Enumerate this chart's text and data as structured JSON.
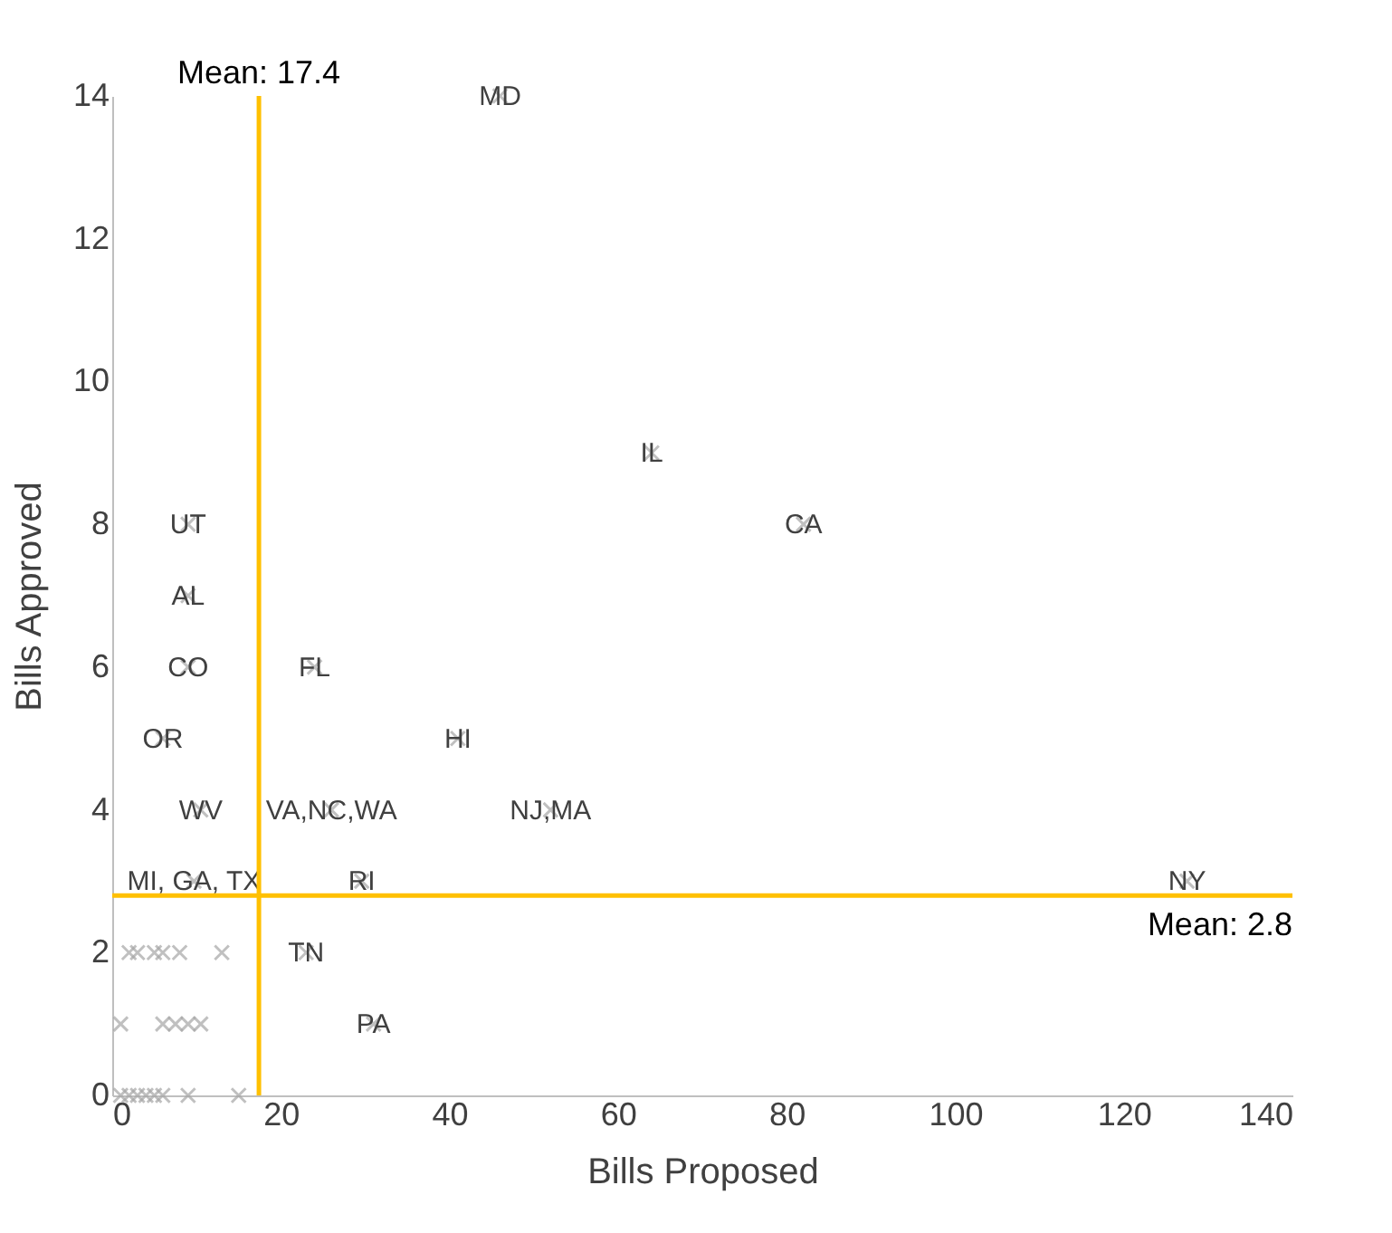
{
  "chart_data": {
    "type": "scatter",
    "xlabel": "Bills Proposed",
    "ylabel": "Bills Approved",
    "xlim": [
      0,
      140
    ],
    "xticks": [
      0,
      20,
      40,
      60,
      80,
      100,
      120,
      140
    ],
    "ylim": [
      0,
      14
    ],
    "yticks": [
      0,
      2,
      4,
      6,
      8,
      10,
      12,
      14
    ],
    "grid": false,
    "legend": false,
    "series": [
      {
        "x": [
          46,
          64,
          82,
          9,
          9,
          9,
          24,
          6,
          41,
          10.5,
          26,
          52,
          9.7,
          29.6,
          127.5,
          23,
          31
        ],
        "values": [
          14,
          9,
          8,
          8,
          7,
          6,
          6,
          5,
          5,
          4,
          4,
          4,
          3,
          3,
          3,
          2,
          1
        ],
        "color": "#a6a6a6",
        "marker": "cross",
        "value_labels": [
          "MD",
          "IL",
          "CA",
          "UT",
          "AL",
          "CO",
          "FL",
          "OR",
          "HI",
          "WV",
          "VA,NC,WA",
          "NJ,MA",
          "MI, GA, TX",
          "RI",
          "NY",
          "TN",
          "PA"
        ]
      },
      {
        "x": [
          2,
          3,
          5,
          6,
          8,
          13,
          1,
          6,
          7.5,
          9,
          10.5,
          1,
          2,
          3,
          4,
          5,
          6,
          9,
          15
        ],
        "values": [
          2,
          2,
          2,
          2,
          2,
          2,
          1,
          1,
          1,
          1,
          1,
          0,
          0,
          0,
          0,
          0,
          0,
          0,
          0
        ],
        "color": "#a6a6a6",
        "marker": "cross"
      }
    ],
    "ref_lines": [
      {
        "axis": "x",
        "value": 17.4,
        "label": "Mean: 17.4",
        "color": "#ffc000"
      },
      {
        "axis": "y",
        "value": 2.8,
        "label": "Mean: 2.8",
        "color": "#ffc000"
      }
    ]
  }
}
